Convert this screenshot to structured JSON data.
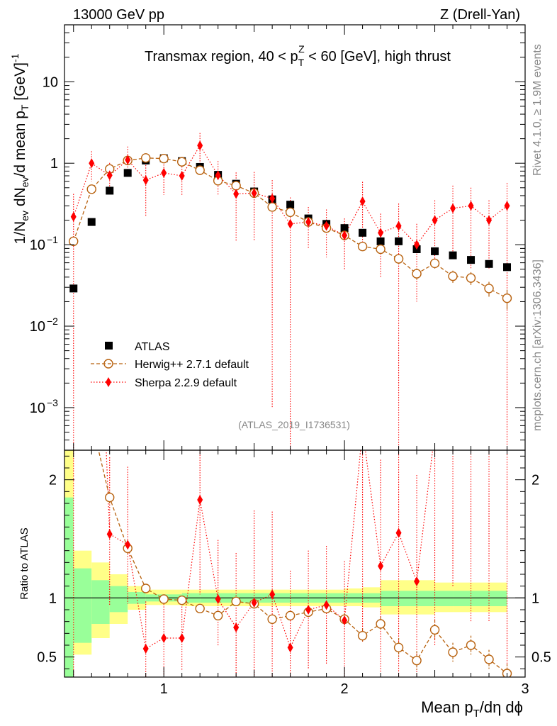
{
  "header": {
    "left": "13000 GeV pp",
    "right": "Z (Drell-Yan)",
    "title": "Transmax region, 40 < pTZ < 60 [GeV], high thrust"
  },
  "side_labels": {
    "rivet": "Rivet 4.1.0, ≥ 1.9M events",
    "mcplots": "mcplots.cern.ch [arXiv:1306.3436]"
  },
  "watermark": "(ATLAS_2019_I1736531)",
  "colors": {
    "atlas": "#000000",
    "herwig": "#b8620f",
    "sherpa": "#ff0000",
    "band_inner": "#99ff99",
    "band_outer": "#ffff88"
  },
  "chart_data": {
    "type": "scatter",
    "upper_ylabel": "1/Nev dNev/d mean pT [GeV]-1",
    "lower_ylabel": "Ratio to ATLAS",
    "xlabel": "Mean pT/dη dφ",
    "xlim": [
      0.45,
      3.0
    ],
    "ylim_upper": [
      0.0003,
      50
    ],
    "ylim_ratio": [
      0.33,
      2.25
    ],
    "x_ticks": [
      "1",
      "2",
      "3"
    ],
    "y_ticks_upper": [
      "10",
      "1",
      "10−1",
      "10−2",
      "10−3"
    ],
    "y_ticks_ratio": [
      "0.5",
      "1",
      "2"
    ],
    "legend": [
      "ATLAS",
      "Herwig++ 2.7.1 default",
      "Sherpa 2.2.9 default"
    ],
    "bins": [
      0.4,
      0.5,
      0.6,
      0.7,
      0.8,
      0.9,
      1.0,
      1.1,
      1.2,
      1.3,
      1.4,
      1.5,
      1.6,
      1.7,
      1.8,
      1.9,
      2.0,
      2.1,
      2.2,
      2.3,
      2.4,
      2.5,
      2.6,
      2.7,
      2.8,
      2.9,
      3.0
    ],
    "x": [
      0.5,
      0.6,
      0.7,
      0.8,
      0.9,
      1.0,
      1.1,
      1.2,
      1.3,
      1.4,
      1.5,
      1.6,
      1.7,
      1.8,
      1.9,
      2.0,
      2.1,
      2.2,
      2.3,
      2.4,
      2.5,
      2.6,
      2.7,
      2.8,
      2.9
    ],
    "series": [
      {
        "name": "ATLAS",
        "values": [
          0.029,
          0.19,
          0.46,
          0.76,
          1.08,
          1.15,
          1.06,
          0.9,
          0.72,
          0.56,
          0.45,
          0.36,
          0.31,
          0.21,
          0.18,
          0.16,
          0.14,
          0.11,
          0.11,
          0.088,
          0.083,
          0.074,
          0.065,
          0.058,
          0.053
        ]
      },
      {
        "name": "Herwig++ 2.7.1 default",
        "values": [
          0.11,
          0.48,
          0.85,
          1.08,
          1.16,
          1.14,
          1.04,
          0.82,
          0.61,
          0.53,
          0.43,
          0.29,
          0.25,
          0.19,
          0.16,
          0.13,
          0.095,
          0.088,
          0.067,
          0.044,
          0.059,
          0.041,
          0.039,
          0.029,
          0.022
        ],
        "errors": [
          0.0,
          0.0,
          0.0,
          0.0,
          0.0,
          0.0,
          0.0,
          0.0,
          0.0,
          0.0,
          0.0,
          0.0,
          0.0,
          0.0,
          0.0,
          0.0,
          0.008,
          0.007,
          0.009,
          0.007,
          0.008,
          0.007,
          0.007,
          0.006,
          0.006
        ]
      },
      {
        "name": "Sherpa 2.2.9 default",
        "values": [
          0.22,
          1.0,
          0.71,
          1.1,
          0.62,
          0.76,
          0.7,
          1.65,
          0.71,
          0.42,
          0.43,
          0.37,
          0.18,
          0.19,
          0.17,
          0.13,
          0.34,
          0.14,
          0.17,
          0.1,
          0.2,
          0.28,
          0.3,
          0.2,
          0.3
        ],
        "err_lo": [
          0.2199,
          0.4,
          0.25,
          0.4,
          0.4,
          0.35,
          0.3,
          0.7,
          0.3,
          0.31,
          0.32,
          0.369,
          0.1799,
          0.1,
          0.1,
          0.08,
          0.25,
          0.1,
          0.1699,
          0.08,
          0.15,
          0.2,
          0.25,
          0.15,
          0.2999
        ],
        "err_hi": [
          0.2,
          0.4,
          0.3,
          0.5,
          0.4,
          0.35,
          0.35,
          0.7,
          0.35,
          0.35,
          0.35,
          0.25,
          0.2,
          0.1,
          0.1,
          0.08,
          0.25,
          0.1,
          0.15,
          0.08,
          0.15,
          0.25,
          0.2,
          0.15,
          0.27
        ]
      }
    ],
    "ratio_herwig": [
      3.8,
      2.5,
      1.85,
      1.42,
      1.08,
      0.99,
      0.98,
      0.91,
      0.85,
      0.97,
      0.95,
      0.82,
      0.85,
      0.88,
      0.91,
      0.82,
      0.68,
      0.78,
      0.58,
      0.47,
      0.73,
      0.54,
      0.6,
      0.48,
      0.36
    ],
    "ratio_herwig_err": [
      0.0,
      0.0,
      0.05,
      0.05,
      0.02,
      0.02,
      0.02,
      0.02,
      0.02,
      0.03,
      0.03,
      0.03,
      0.03,
      0.04,
      0.04,
      0.05,
      0.06,
      0.06,
      0.08,
      0.08,
      0.08,
      0.08,
      0.08,
      0.08,
      0.08
    ],
    "ratio_sherpa": [
      7.6,
      5.3,
      1.54,
      1.45,
      0.57,
      0.66,
      0.66,
      1.83,
      0.99,
      0.75,
      0.96,
      1.03,
      0.58,
      0.9,
      0.94,
      0.81,
      2.43,
      1.27,
      1.55,
      1.14,
      2.4,
      3.8,
      4.6,
      3.4,
      5.6
    ],
    "ratio_sherpa_lo": [
      7.6,
      2.0,
      0.6,
      0.5,
      0.4,
      0.31,
      0.28,
      0.8,
      0.4,
      0.56,
      0.7,
      1.02,
      0.58,
      0.5,
      0.5,
      0.5,
      1.8,
      0.9,
      1.54,
      0.9,
      1.8,
      2.7,
      3.8,
      2.6,
      5.59
    ],
    "ratio_sherpa_hi": [
      5.0,
      2.0,
      0.65,
      0.66,
      0.4,
      0.31,
      0.33,
      0.8,
      0.5,
      0.63,
      0.78,
      0.7,
      0.65,
      0.5,
      0.5,
      0.5,
      1.8,
      0.9,
      1.4,
      0.9,
      1.8,
      3.4,
      3.1,
      2.6,
      5.1
    ],
    "band_inner_lo": [
      0.2,
      0.62,
      0.78,
      0.88,
      0.95,
      0.97,
      0.97,
      0.96,
      0.96,
      0.96,
      0.96,
      0.96,
      0.96,
      0.96,
      0.96,
      0.96,
      0.96,
      0.96,
      0.93,
      0.93,
      0.93,
      0.93,
      0.93,
      0.93,
      0.93
    ],
    "band_inner_hi": [
      1.85,
      1.25,
      1.15,
      1.1,
      1.05,
      1.03,
      1.03,
      1.04,
      1.04,
      1.04,
      1.04,
      1.04,
      1.04,
      1.04,
      1.04,
      1.04,
      1.04,
      1.04,
      1.06,
      1.06,
      1.06,
      1.06,
      1.06,
      1.06,
      1.06
    ],
    "band_outer_lo": [
      0.2,
      0.52,
      0.66,
      0.78,
      0.9,
      0.94,
      0.94,
      0.93,
      0.93,
      0.93,
      0.93,
      0.93,
      0.93,
      0.93,
      0.93,
      0.93,
      0.93,
      0.92,
      0.86,
      0.86,
      0.86,
      0.88,
      0.88,
      0.88,
      0.88
    ],
    "band_outer_hi": [
      2.6,
      1.4,
      1.3,
      1.2,
      1.1,
      1.07,
      1.07,
      1.07,
      1.07,
      1.07,
      1.07,
      1.07,
      1.07,
      1.07,
      1.07,
      1.07,
      1.08,
      1.09,
      1.15,
      1.15,
      1.15,
      1.13,
      1.13,
      1.13,
      1.13
    ]
  }
}
